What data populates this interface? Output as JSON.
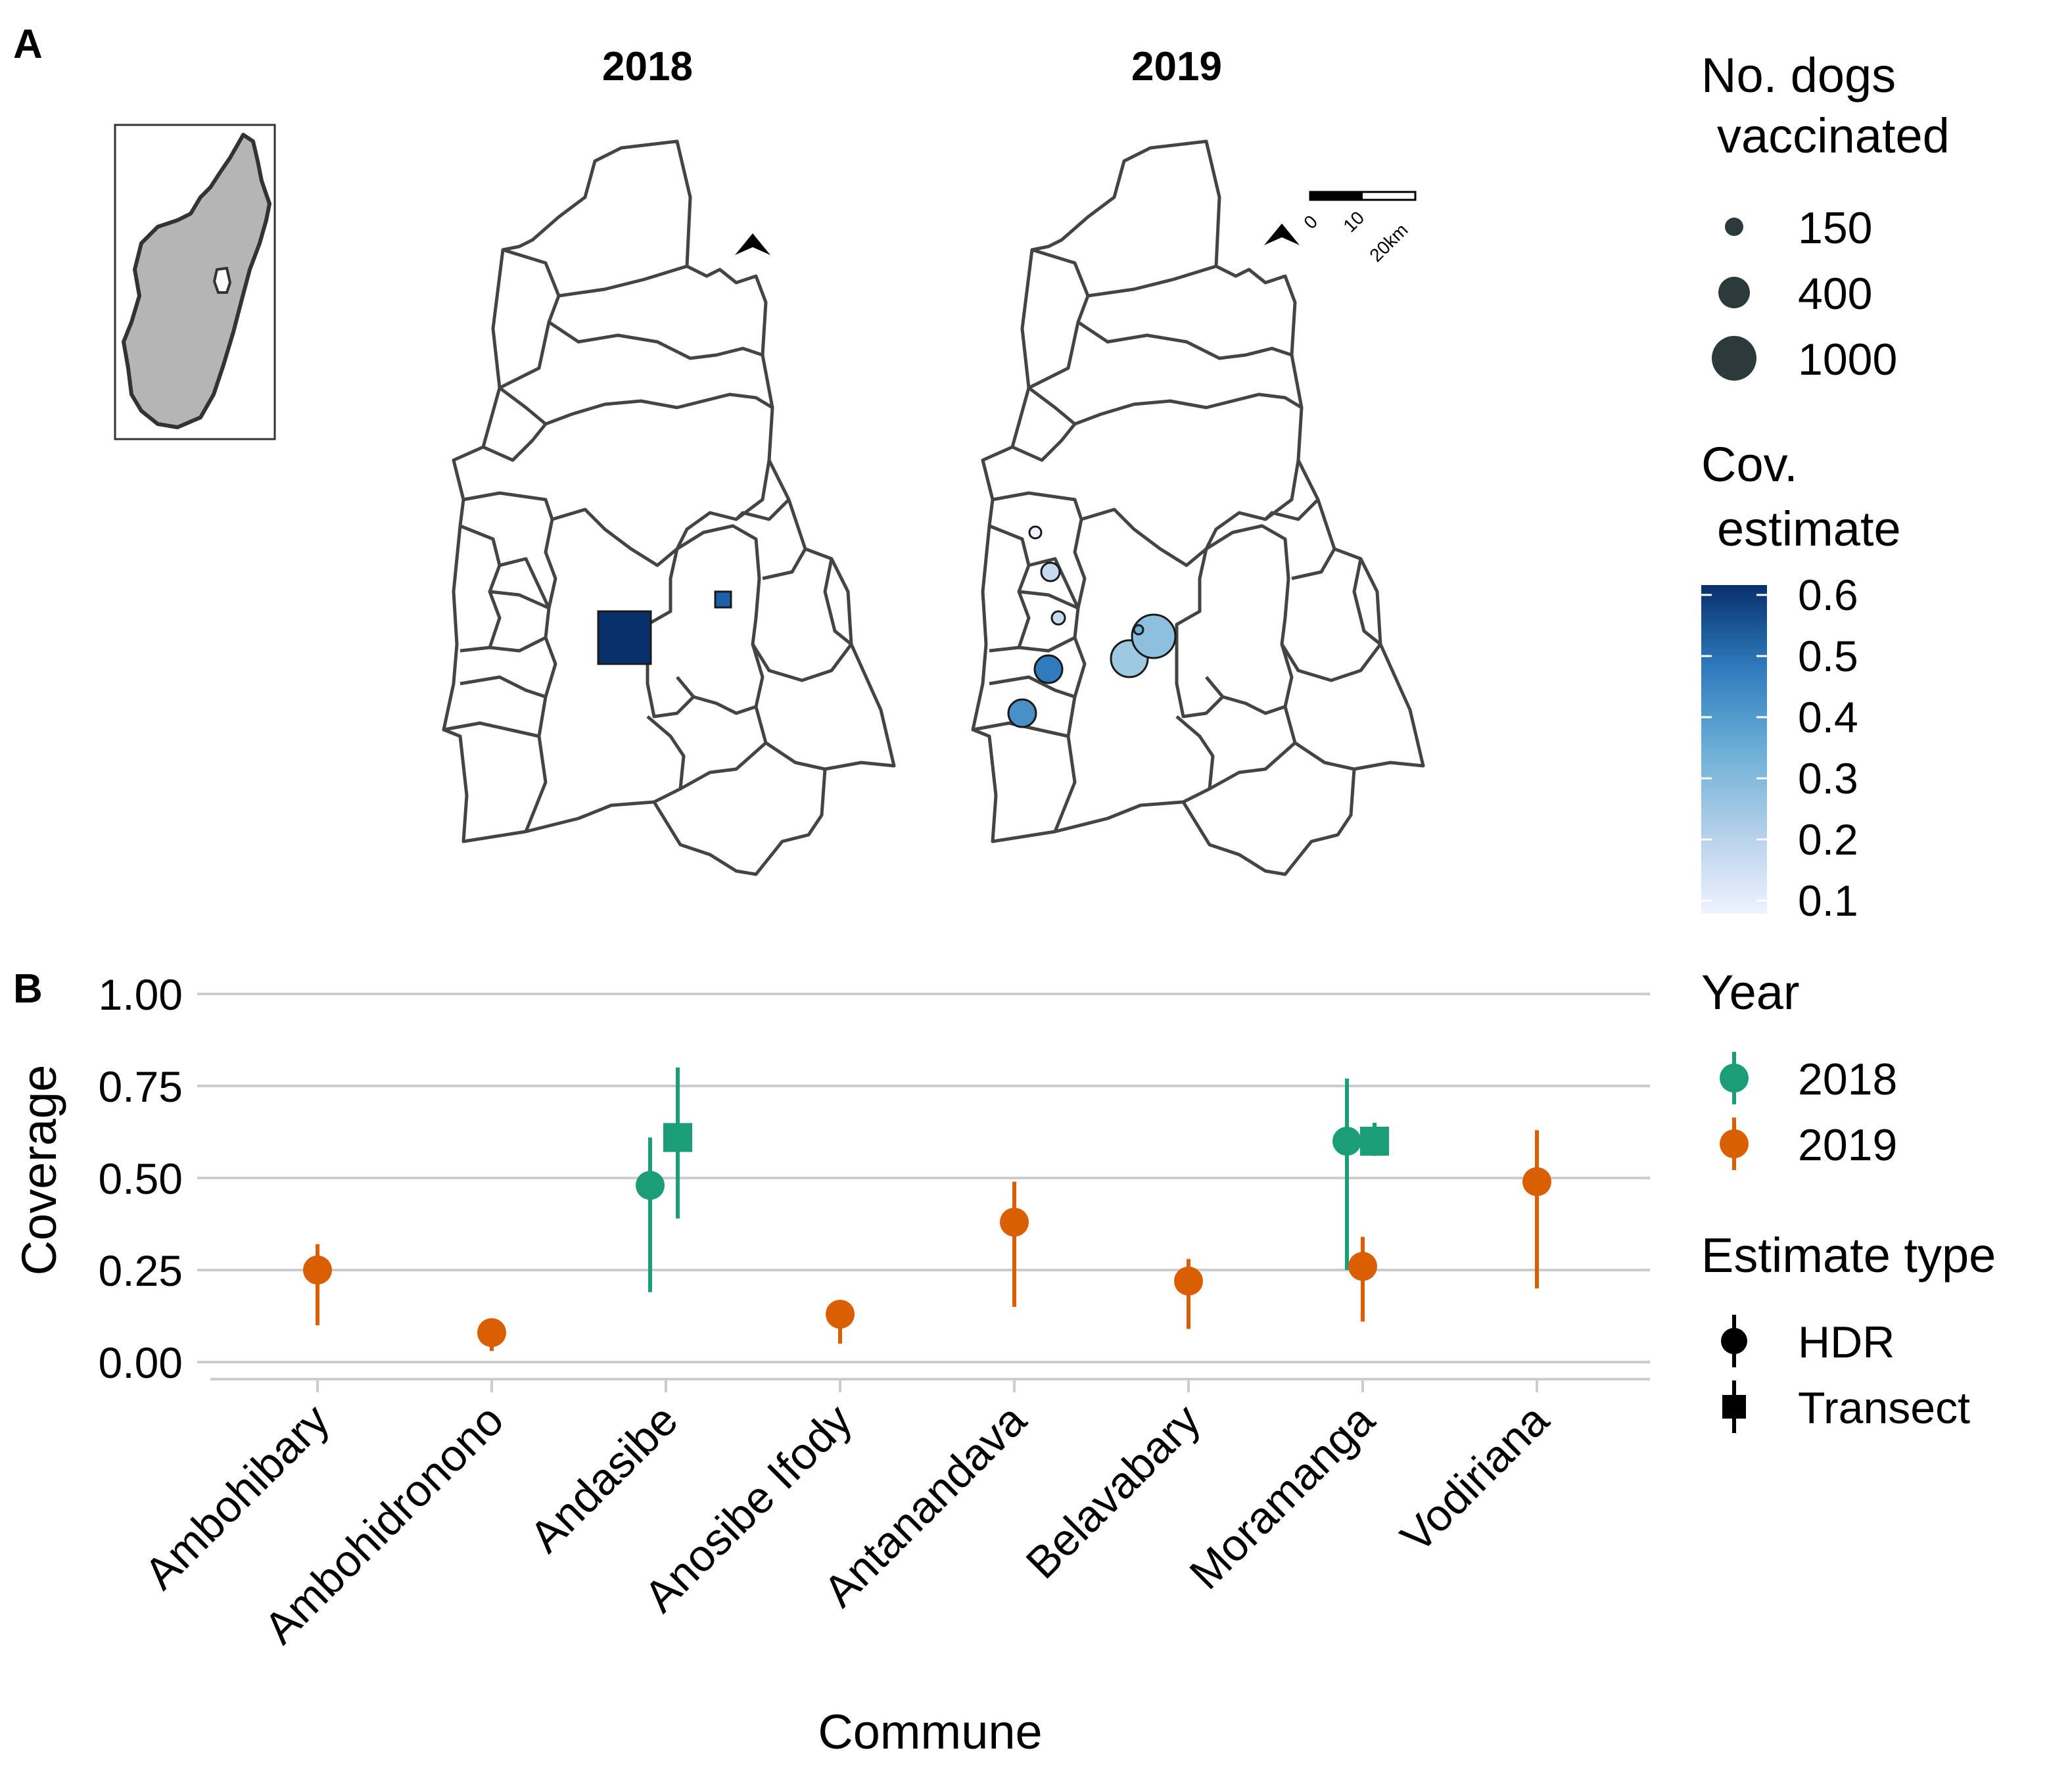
{
  "panel_a": {
    "label": "A",
    "map_titles": [
      "2018",
      "2019"
    ],
    "scale_bar": {
      "ticks": [
        "0",
        "10",
        "20km"
      ]
    },
    "legend_size": {
      "title_line1": "No. dogs",
      "title_line2": "vaccinated",
      "entries": [
        "150",
        "400",
        "1000"
      ]
    },
    "legend_color": {
      "title_line1": "Cov.",
      "title_line2": "estimate",
      "ticks": [
        "0.6",
        "0.5",
        "0.4",
        "0.3",
        "0.2",
        "0.1"
      ]
    }
  },
  "chart_data": {
    "type": "scatter",
    "panel_label": "B",
    "xlabel": "Commune",
    "ylabel": "Coverage",
    "ylim": [
      0,
      1
    ],
    "yticks": [
      "1.00",
      "0.75",
      "0.50",
      "0.25",
      "0.00"
    ],
    "categories": [
      "Ambohibary",
      "Ambohidronono",
      "Andasibe",
      "Anosibe Ifody",
      "Antanandava",
      "Belavabary",
      "Moramanga",
      "Vodiriana"
    ],
    "legend_year": {
      "title": "Year",
      "entries": [
        "2018",
        "2019"
      ]
    },
    "legend_type": {
      "title": "Estimate type",
      "entries": [
        "HDR",
        "Transect"
      ]
    },
    "colors": {
      "2018": "#1b9e77",
      "2019": "#d95f02"
    },
    "points": [
      {
        "commune": "Ambohibary",
        "year": "2019",
        "type": "HDR",
        "value": 0.25,
        "low": 0.1,
        "high": 0.32
      },
      {
        "commune": "Ambohidronono",
        "year": "2019",
        "type": "HDR",
        "value": 0.08,
        "low": 0.03,
        "high": 0.08
      },
      {
        "commune": "Andasibe",
        "year": "2018",
        "type": "HDR",
        "value": 0.48,
        "low": 0.19,
        "high": 0.61
      },
      {
        "commune": "Andasibe",
        "year": "2018",
        "type": "Transect",
        "value": 0.61,
        "low": 0.39,
        "high": 0.8
      },
      {
        "commune": "Anosibe Ifody",
        "year": "2019",
        "type": "HDR",
        "value": 0.13,
        "low": 0.05,
        "high": 0.13
      },
      {
        "commune": "Antanandava",
        "year": "2019",
        "type": "HDR",
        "value": 0.38,
        "low": 0.15,
        "high": 0.49
      },
      {
        "commune": "Belavabary",
        "year": "2019",
        "type": "HDR",
        "value": 0.22,
        "low": 0.09,
        "high": 0.28
      },
      {
        "commune": "Moramanga",
        "year": "2018",
        "type": "HDR",
        "value": 0.6,
        "low": 0.25,
        "high": 0.77
      },
      {
        "commune": "Moramanga",
        "year": "2018",
        "type": "Transect",
        "value": 0.6,
        "low": 0.56,
        "high": 0.65
      },
      {
        "commune": "Moramanga",
        "year": "2019",
        "type": "HDR",
        "value": 0.26,
        "low": 0.11,
        "high": 0.34
      },
      {
        "commune": "Vodiriana",
        "year": "2019",
        "type": "HDR",
        "value": 0.49,
        "low": 0.2,
        "high": 0.63
      }
    ]
  }
}
